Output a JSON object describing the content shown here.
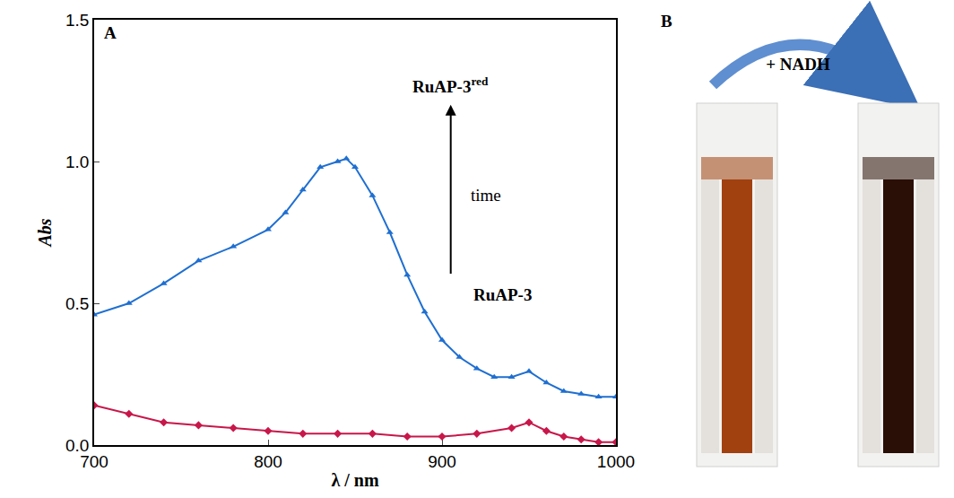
{
  "chart_data": {
    "type": "line",
    "panel_label": "A",
    "x_label": "λ / nm",
    "y_label": "Abs",
    "xlim": [
      700,
      1000
    ],
    "xticks": [
      700,
      800,
      900,
      1000
    ],
    "ylim": [
      0,
      1.5
    ],
    "yticks": [
      {
        "value": 0,
        "label": "0.0"
      },
      {
        "value": 0.5,
        "label": "0.5"
      },
      {
        "value": 1,
        "label": "1.0"
      },
      {
        "value": 1.5,
        "label": "1.5"
      }
    ],
    "grid": false,
    "series": [
      {
        "color": "#1f6fd1",
        "marker": "triangle-up",
        "x": [
          700,
          720,
          740,
          760,
          780,
          800,
          810,
          820,
          830,
          840,
          845,
          850,
          860,
          870,
          880,
          890,
          900,
          910,
          920,
          930,
          940,
          950,
          960,
          970,
          980,
          990,
          1000
        ],
        "values": [
          0.46,
          0.5,
          0.57,
          0.65,
          0.7,
          0.76,
          0.82,
          0.9,
          0.98,
          1.0,
          1.01,
          0.98,
          0.88,
          0.75,
          0.6,
          0.47,
          0.37,
          0.31,
          0.27,
          0.24,
          0.24,
          0.26,
          0.22,
          0.19,
          0.18,
          0.17,
          0.17
        ]
      },
      {
        "color": "#c8174a",
        "marker": "diamond",
        "x": [
          700,
          720,
          740,
          760,
          780,
          800,
          820,
          840,
          860,
          880,
          900,
          920,
          940,
          950,
          960,
          970,
          980,
          990,
          1000
        ],
        "values": [
          0.14,
          0.11,
          0.08,
          0.07,
          0.06,
          0.05,
          0.04,
          0.04,
          0.04,
          0.03,
          0.03,
          0.04,
          0.06,
          0.08,
          0.05,
          0.03,
          0.02,
          0.01,
          0.01
        ]
      }
    ],
    "annotations": [
      {
        "text": "RuAP-3",
        "sup": "red",
        "x": 905,
        "y": 1.27
      },
      {
        "text": "time",
        "x": 925,
        "y": 0.88
      },
      {
        "text": "RuAP-3",
        "x": 935,
        "y": 0.53
      }
    ]
  },
  "photo_panel": {
    "panel_label": "B",
    "caption": "+ NADH"
  }
}
